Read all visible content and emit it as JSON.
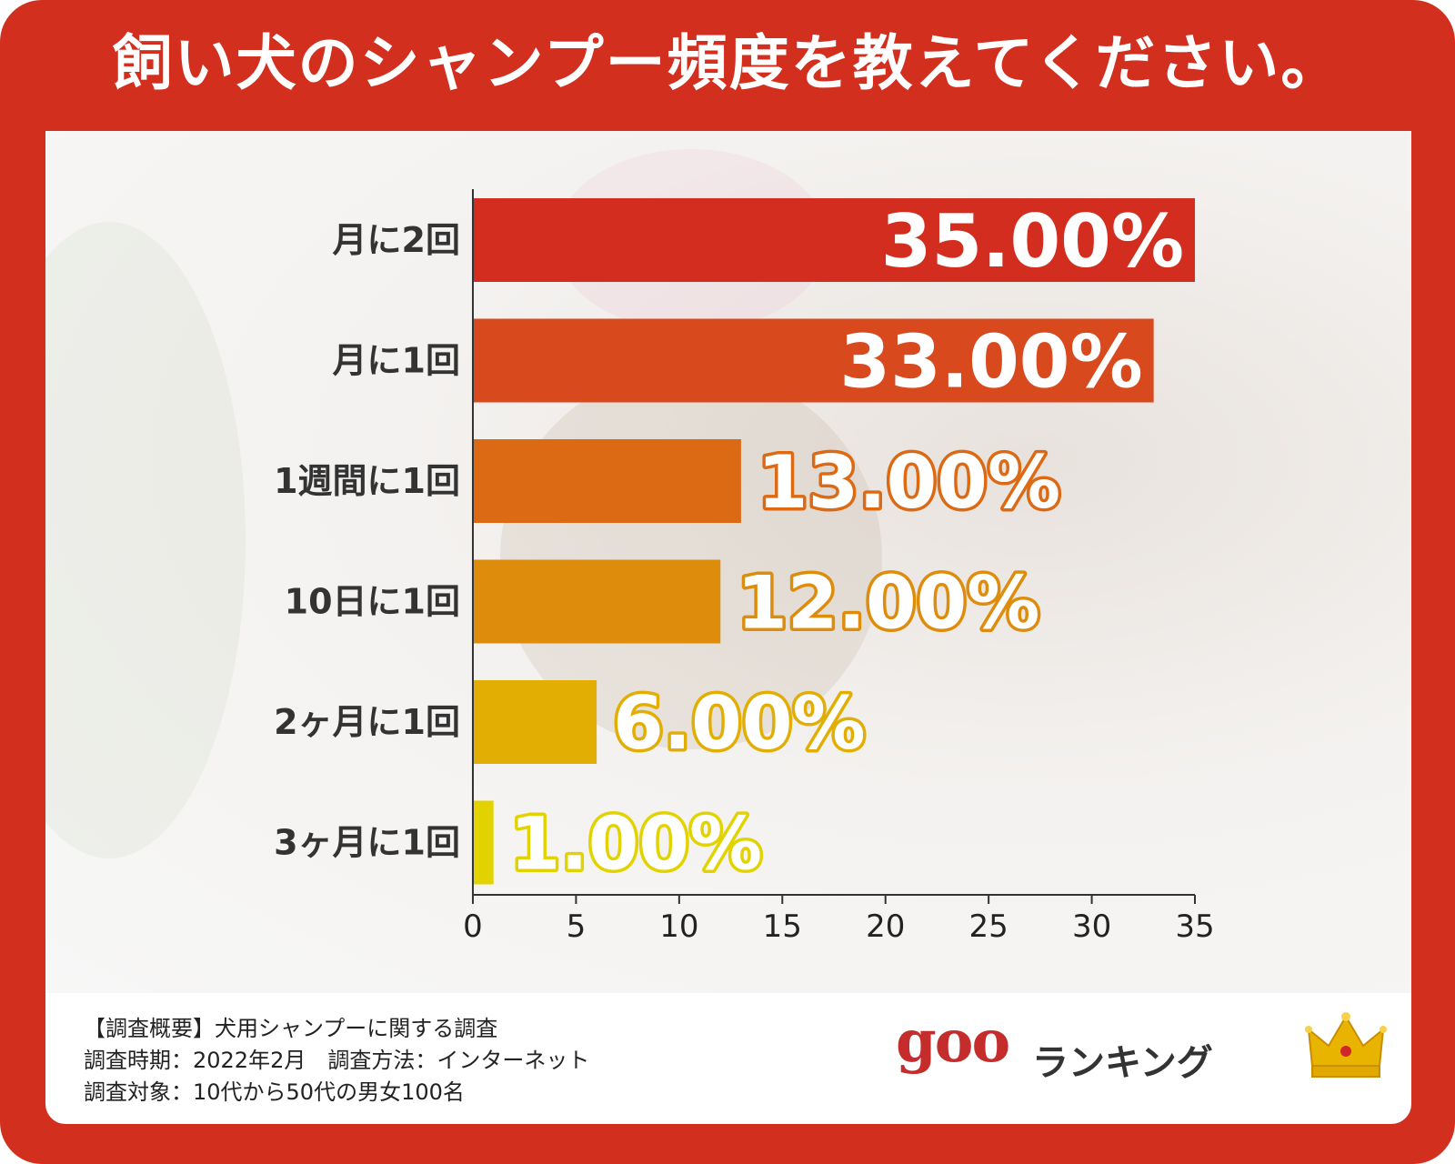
{
  "title": "飼い犬のシャンプー頻度を教えてください。",
  "chart_data": {
    "type": "bar",
    "orientation": "horizontal",
    "categories": [
      "月に2回",
      "月に1回",
      "1週間に1回",
      "10日に1回",
      "2ヶ月に1回",
      "3ヶ月に1回"
    ],
    "values": [
      35,
      33,
      13,
      12,
      6,
      1
    ],
    "value_labels": [
      "35.00%",
      "33.00%",
      "13.00%",
      "12.00%",
      "6.00%",
      "1.00%"
    ],
    "bar_colors": [
      "#d22d1f",
      "#d84a1e",
      "#dc6a14",
      "#de8c0c",
      "#e2ae04",
      "#e2d300"
    ],
    "xlim": [
      0,
      35
    ],
    "xticks": [
      "0",
      "5",
      "10",
      "15",
      "20",
      "25",
      "30",
      "35"
    ],
    "grid": false
  },
  "footer": {
    "survey_lines": [
      "【調査概要】犬用シャンプーに関する調査",
      "調査時期：2022年2月　調査方法：インターネット",
      "調査対象：10代から50代の男女100名"
    ],
    "logo_goo": "goo",
    "logo_ranking": "ランキング"
  },
  "colors": {
    "frame": "#d22f1f",
    "logo_goo": "#c42d2b",
    "crown": "#e6b800"
  },
  "icons": {
    "crown": "crown-icon"
  }
}
